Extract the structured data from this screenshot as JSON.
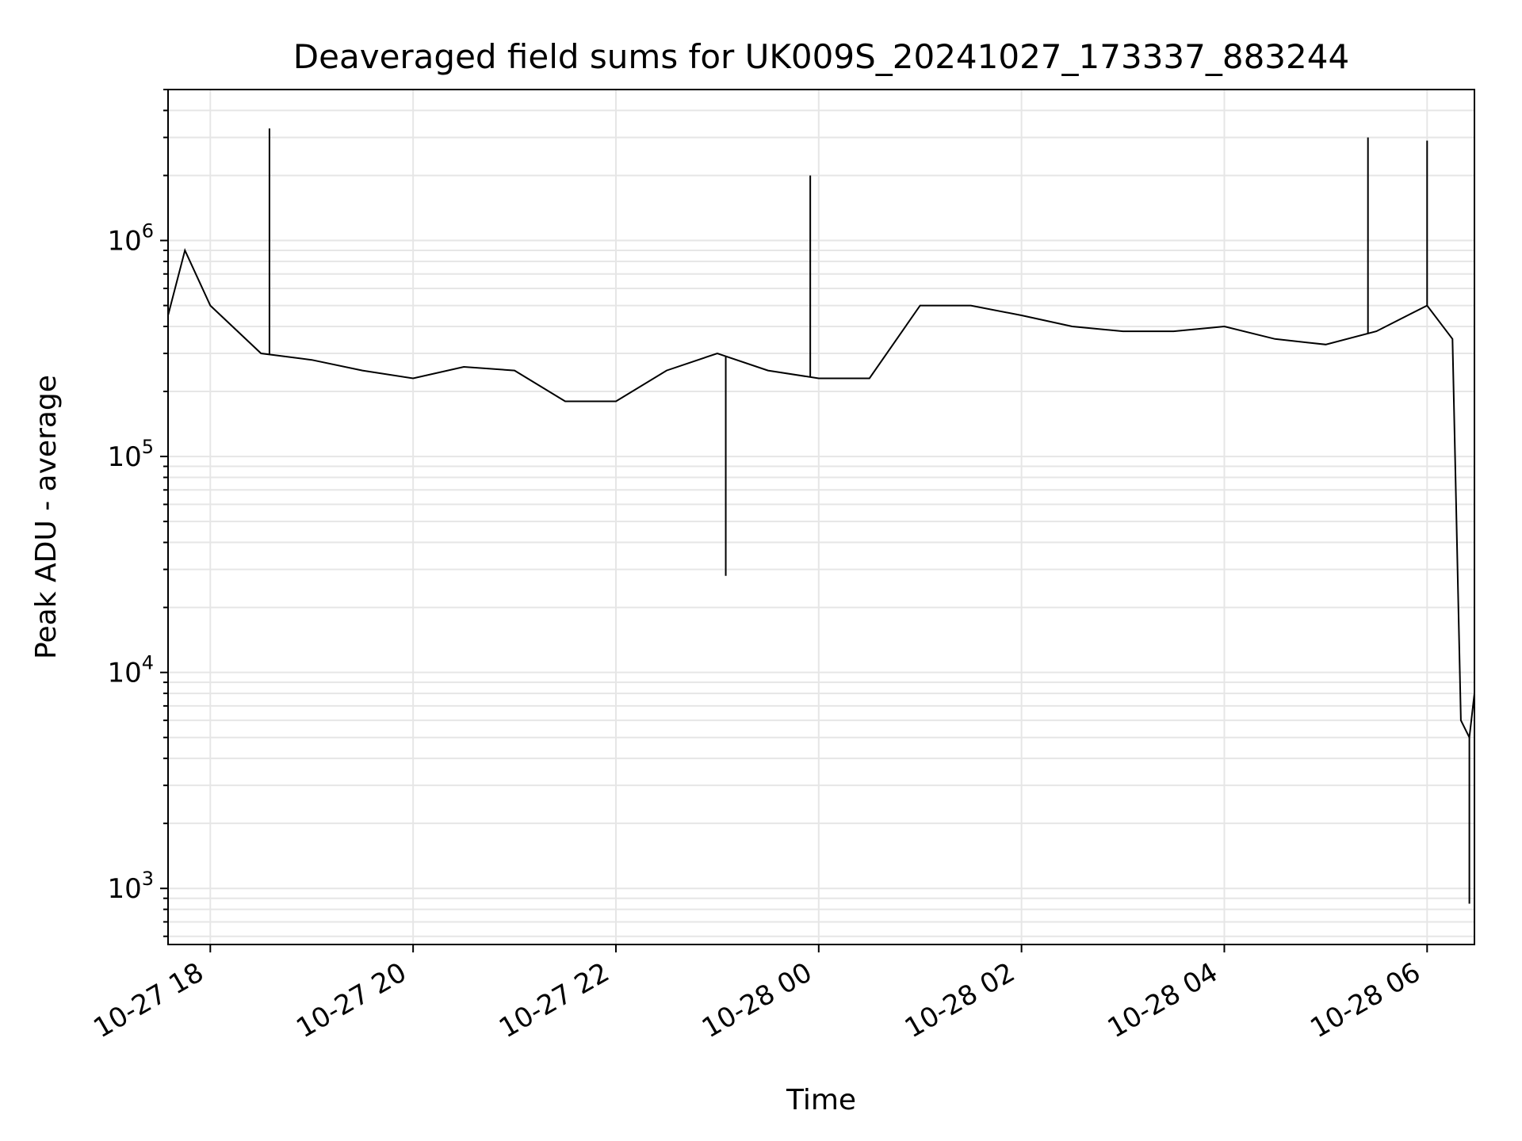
{
  "chart_data": {
    "type": "line",
    "title": "Deaveraged field sums for UK009S_20241027_173337_883244",
    "xlabel": "Time",
    "ylabel": "Peak ADU - average",
    "yscale": "log",
    "xlim": [
      "2024-10-27 17:35",
      "2024-10-28 06:28"
    ],
    "ylim": [
      550,
      5000000
    ],
    "grid": true,
    "line_color": "#000000",
    "grid_color": "#e6e6e6",
    "x_ticks": [
      {
        "value": "2024-10-27 18:00",
        "label": "10-27 18"
      },
      {
        "value": "2024-10-27 20:00",
        "label": "10-27 20"
      },
      {
        "value": "2024-10-27 22:00",
        "label": "10-27 22"
      },
      {
        "value": "2024-10-28 00:00",
        "label": "10-28 00"
      },
      {
        "value": "2024-10-28 02:00",
        "label": "10-28 02"
      },
      {
        "value": "2024-10-28 04:00",
        "label": "10-28 04"
      },
      {
        "value": "2024-10-28 06:00",
        "label": "10-28 06"
      }
    ],
    "y_ticks": [
      {
        "value": 1000,
        "base": "10",
        "exp": "3"
      },
      {
        "value": 10000,
        "base": "10",
        "exp": "4"
      },
      {
        "value": 100000,
        "base": "10",
        "exp": "5"
      },
      {
        "value": 1000000,
        "base": "10",
        "exp": "6"
      }
    ],
    "series": [
      {
        "description": "median trend and extreme points read from plot",
        "x": [
          "2024-10-27 17:35",
          "2024-10-27 17:45",
          "2024-10-27 18:00",
          "2024-10-27 18:30",
          "2024-10-27 19:00",
          "2024-10-27 19:30",
          "2024-10-27 20:00",
          "2024-10-27 20:30",
          "2024-10-27 21:00",
          "2024-10-27 21:30",
          "2024-10-27 22:00",
          "2024-10-27 22:30",
          "2024-10-27 23:00",
          "2024-10-27 23:30",
          "2024-10-28 00:00",
          "2024-10-28 00:30",
          "2024-10-28 01:00",
          "2024-10-28 01:30",
          "2024-10-28 02:00",
          "2024-10-28 02:30",
          "2024-10-28 03:00",
          "2024-10-28 03:30",
          "2024-10-28 04:00",
          "2024-10-28 04:30",
          "2024-10-28 05:00",
          "2024-10-28 05:30",
          "2024-10-28 06:00",
          "2024-10-28 06:15",
          "2024-10-28 06:20",
          "2024-10-28 06:25",
          "2024-10-28 06:28"
        ],
        "y": [
          450000,
          900000,
          500000,
          300000,
          280000,
          250000,
          230000,
          260000,
          250000,
          180000,
          180000,
          250000,
          300000,
          250000,
          230000,
          230000,
          500000,
          500000,
          450000,
          400000,
          380000,
          380000,
          400000,
          350000,
          330000,
          380000,
          500000,
          350000,
          6000,
          5000,
          8000
        ],
        "spikes": [
          {
            "x": "2024-10-27 18:35",
            "y": 3300000
          },
          {
            "x": "2024-10-27 23:55",
            "y": 2000000
          },
          {
            "x": "2024-10-27 23:05",
            "y": 28000
          },
          {
            "x": "2024-10-28 05:25",
            "y": 3000000
          },
          {
            "x": "2024-10-28 06:00",
            "y": 2900000
          },
          {
            "x": "2024-10-28 06:25",
            "y": 850
          }
        ]
      }
    ]
  }
}
